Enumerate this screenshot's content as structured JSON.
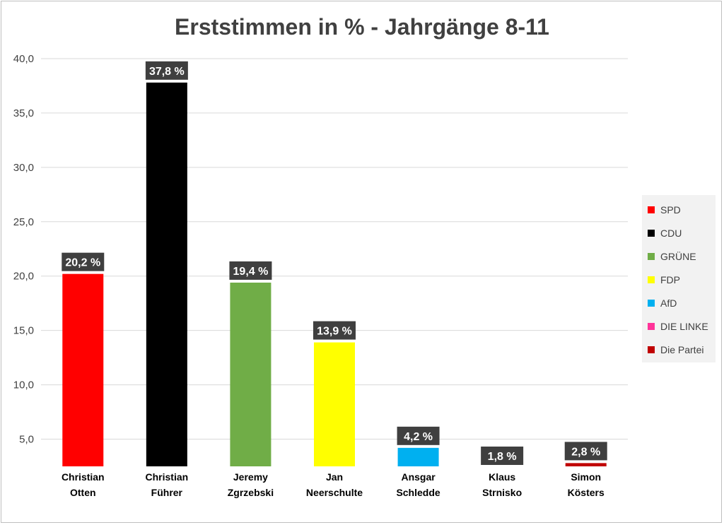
{
  "chart_data": {
    "type": "bar",
    "title": "Erststimmen in % - Jahrgänge 8-11",
    "categories": [
      [
        "Christian",
        "Otten"
      ],
      [
        "Christian",
        "Führer"
      ],
      [
        "Jeremy",
        "Zgrzebski"
      ],
      [
        "Jan",
        "Neerschulte"
      ],
      [
        "Ansgar",
        "Schledde"
      ],
      [
        "Klaus",
        "Strnisko"
      ],
      [
        "Simon",
        "Kösters"
      ]
    ],
    "values": [
      20.2,
      37.8,
      19.4,
      13.9,
      4.2,
      1.8,
      2.8
    ],
    "data_labels": [
      "20,2 %",
      "37,8 %",
      "19,4 %",
      "13,9 %",
      "4,2 %",
      "1,8 %",
      "2,8 %"
    ],
    "colors": [
      "#ff0000",
      "#000000",
      "#70ad47",
      "#ffff00",
      "#00b0f0",
      "#ff3399",
      "#c00000"
    ],
    "ylim": [
      2.5,
      40
    ],
    "yticks": [
      5,
      10,
      15,
      20,
      25,
      30,
      35,
      40
    ],
    "ytick_labels": [
      "5,0",
      "10,0",
      "15,0",
      "20,0",
      "25,0",
      "30,0",
      "35,0",
      "40,0"
    ],
    "grid": true,
    "legend": {
      "position": "right",
      "entries": [
        {
          "label": "SPD",
          "color": "#ff0000"
        },
        {
          "label": "CDU",
          "color": "#000000"
        },
        {
          "label": "GRÜNE",
          "color": "#70ad47"
        },
        {
          "label": "FDP",
          "color": "#ffff00"
        },
        {
          "label": "AfD",
          "color": "#00b0f0"
        },
        {
          "label": "DIE LINKE",
          "color": "#ff3399"
        },
        {
          "label": "Die Partei",
          "color": "#c00000"
        }
      ]
    }
  }
}
